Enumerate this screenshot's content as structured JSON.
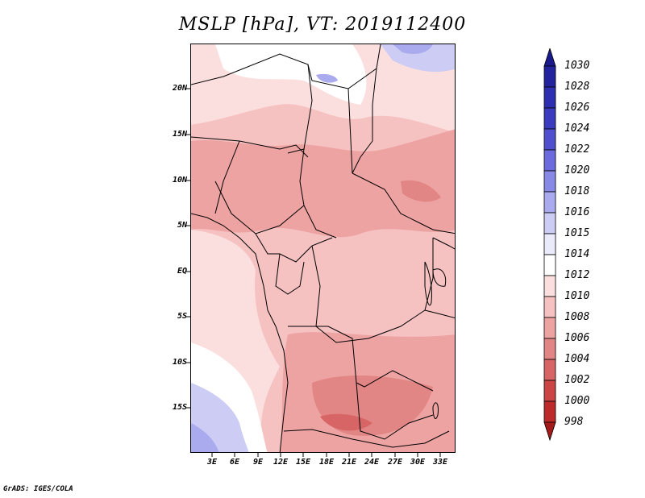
{
  "title": "MSLP [hPa], VT: 2019112400",
  "credit": "GrADS: IGES/COLA",
  "map": {
    "lat_ticks": [
      "20N",
      "15N",
      "10N",
      "5N",
      "EQ",
      "5S",
      "10S",
      "15S"
    ],
    "lon_ticks": [
      "3E",
      "6E",
      "9E",
      "12E",
      "15E",
      "18E",
      "21E",
      "24E",
      "27E",
      "30E",
      "33E"
    ]
  },
  "colorbar": {
    "levels": [
      "1030",
      "1028",
      "1026",
      "1024",
      "1022",
      "1020",
      "1018",
      "1016",
      "1015",
      "1014",
      "1012",
      "1010",
      "1008",
      "1006",
      "1004",
      "1002",
      "1000",
      "998"
    ],
    "colors": [
      "#1a1a8c",
      "#23239e",
      "#2e2eb0",
      "#3b3bc0",
      "#5050cf",
      "#6b6bdd",
      "#8888e6",
      "#aaaaee",
      "#ccccf5",
      "#eaeafb",
      "#ffffff",
      "#fbdede",
      "#f6c1c1",
      "#eea3a3",
      "#e28585",
      "#d86565",
      "#cc4545",
      "#bd2a2a",
      "#a31a1a"
    ]
  }
}
